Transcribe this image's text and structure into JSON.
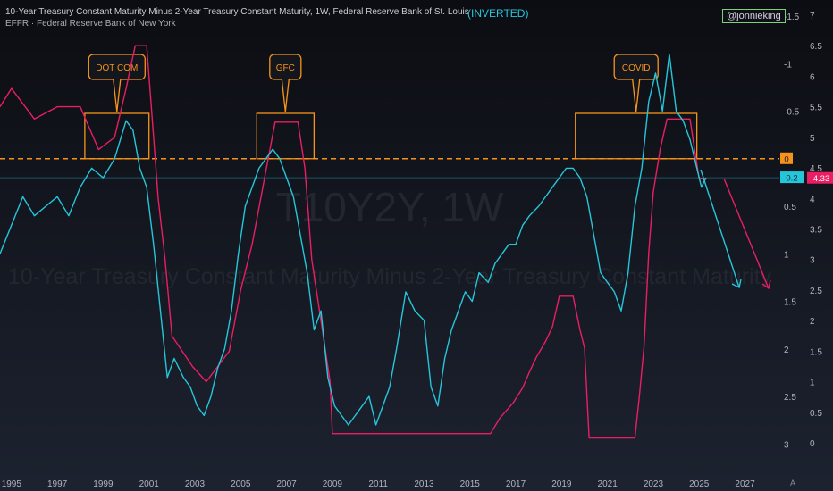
{
  "header": {
    "title": "10-Year Treasury Constant Maturity Minus 2-Year Treasury Constant Maturity, 1W, Federal Reserve Bank of St. Louis",
    "subtitle": "EFFR · Federal Reserve Bank of New York",
    "inverted_label": "(INVERTED)",
    "handle": "@jonnieking"
  },
  "watermark": {
    "symbol": "T10Y2Y, 1W",
    "description": "10-Year Treasury Constant Maturity Minus 2-Year Treasury Constant Maturity"
  },
  "colors": {
    "spread": "#26c6da",
    "effr": "#e91e63",
    "highlight": "#f7931a",
    "arrow_spread": "#26c6da",
    "arrow_effr": "#e91e63"
  },
  "chart_data": {
    "type": "line",
    "x_ticks": [
      "1995",
      "1997",
      "1999",
      "2001",
      "2003",
      "2005",
      "2007",
      "2009",
      "2011",
      "2013",
      "2015",
      "2017",
      "2019",
      "2021",
      "2023",
      "2025",
      "2027"
    ],
    "x_range": [
      1994.5,
      2028.5
    ],
    "left_axis_ticks": [
      "A",
      "1.5"
    ],
    "inner_axis": {
      "label": "T10Y2Y (inverted)",
      "ticks": [
        "-1.5",
        "-1",
        "-0.5",
        "0",
        "0.5",
        "1",
        "1.5",
        "2",
        "2.5",
        "3"
      ],
      "range": [
        -1.5,
        3.1
      ],
      "inverted": true
    },
    "right_axis": {
      "label": "EFFR",
      "ticks": [
        "7",
        "6.5",
        "6",
        "5.5",
        "5",
        "4.5",
        "4",
        "3.5",
        "3",
        "2.5",
        "2",
        "1.5",
        "1",
        "0.5",
        "0"
      ],
      "range": [
        0,
        7.15
      ]
    },
    "series": [
      {
        "name": "T10Y2Y",
        "axis": "inner",
        "x": [
          1994.5,
          1995.0,
          1995.5,
          1996.0,
          1996.5,
          1997.0,
          1997.5,
          1998.0,
          1998.5,
          1999.0,
          1999.5,
          2000.0,
          2000.3,
          2000.6,
          2000.9,
          2001.2,
          2001.5,
          2001.8,
          2002.1,
          2002.5,
          2002.8,
          2003.1,
          2003.4,
          2003.7,
          2004.0,
          2004.3,
          2004.6,
          2004.9,
          2005.2,
          2005.5,
          2005.8,
          2006.1,
          2006.4,
          2006.7,
          2007.0,
          2007.3,
          2007.6,
          2007.9,
          2008.2,
          2008.5,
          2008.8,
          2009.1,
          2009.4,
          2009.7,
          2010.0,
          2010.3,
          2010.6,
          2010.9,
          2011.2,
          2011.5,
          2011.8,
          2012.2,
          2012.6,
          2013.0,
          2013.3,
          2013.6,
          2013.9,
          2014.2,
          2014.5,
          2014.8,
          2015.1,
          2015.4,
          2015.8,
          2016.1,
          2016.4,
          2016.7,
          2017.0,
          2017.3,
          2017.6,
          2018.0,
          2018.3,
          2018.6,
          2018.9,
          2019.2,
          2019.5,
          2019.8,
          2020.1,
          2020.4,
          2020.7,
          2021.0,
          2021.3,
          2021.6,
          2021.9,
          2022.2,
          2022.5,
          2022.8,
          2023.1,
          2023.4,
          2023.7,
          2024.0,
          2024.3,
          2024.6,
          2024.9,
          2025.1,
          2025.3
        ],
        "values": [
          1.0,
          0.7,
          0.4,
          0.6,
          0.5,
          0.4,
          0.6,
          0.3,
          0.1,
          0.2,
          0.0,
          -0.4,
          -0.3,
          0.1,
          0.3,
          0.9,
          1.6,
          2.3,
          2.1,
          2.3,
          2.4,
          2.6,
          2.7,
          2.5,
          2.2,
          2.0,
          1.6,
          1.0,
          0.5,
          0.3,
          0.1,
          0.0,
          -0.1,
          0.0,
          0.2,
          0.4,
          0.8,
          1.2,
          1.8,
          1.6,
          2.3,
          2.6,
          2.7,
          2.8,
          2.7,
          2.6,
          2.5,
          2.8,
          2.6,
          2.4,
          2.0,
          1.4,
          1.6,
          1.7,
          2.4,
          2.6,
          2.1,
          1.8,
          1.6,
          1.4,
          1.5,
          1.2,
          1.3,
          1.1,
          1.0,
          0.9,
          0.9,
          0.7,
          0.6,
          0.5,
          0.4,
          0.3,
          0.2,
          0.1,
          0.1,
          0.2,
          0.4,
          0.8,
          1.2,
          1.3,
          1.4,
          1.6,
          1.2,
          0.5,
          0.1,
          -0.6,
          -0.9,
          -0.5,
          -1.1,
          -0.5,
          -0.4,
          -0.2,
          0.1,
          0.3,
          0.2
        ]
      },
      {
        "name": "EFFR",
        "axis": "right",
        "x": [
          1994.5,
          1995.0,
          1996.0,
          1997.0,
          1998.0,
          1998.8,
          1999.5,
          2000.0,
          2000.4,
          2000.9,
          2001.1,
          2001.4,
          2001.7,
          2002.0,
          2002.9,
          2003.5,
          2004.5,
          2005.0,
          2005.5,
          2006.0,
          2006.5,
          2007.5,
          2007.8,
          2008.1,
          2008.5,
          2008.9,
          2009.0,
          2015.9,
          2016.3,
          2016.9,
          2017.3,
          2017.6,
          2017.9,
          2018.3,
          2018.6,
          2018.9,
          2019.5,
          2019.8,
          2020.0,
          2020.2,
          2022.2,
          2022.4,
          2022.6,
          2022.8,
          2023.0,
          2023.3,
          2023.6,
          2024.6,
          2024.8,
          2025.0,
          2025.3
        ],
        "values": [
          5.5,
          5.8,
          5.3,
          5.5,
          5.5,
          4.8,
          5.0,
          5.8,
          6.5,
          6.5,
          5.5,
          4.0,
          3.0,
          1.75,
          1.25,
          1.0,
          1.5,
          2.5,
          3.25,
          4.25,
          5.25,
          5.25,
          4.5,
          3.0,
          2.0,
          1.0,
          0.15,
          0.15,
          0.4,
          0.66,
          0.9,
          1.16,
          1.4,
          1.66,
          1.9,
          2.4,
          2.4,
          1.85,
          1.55,
          0.08,
          0.08,
          0.8,
          1.6,
          3.1,
          4.1,
          4.8,
          5.3,
          5.3,
          4.8,
          4.33,
          4.33
        ]
      }
    ],
    "current_values": {
      "T10Y2Y": "0.2",
      "EFFR": "4.33",
      "zero_line": "0"
    },
    "annotations": [
      {
        "label": "DOT COM",
        "x_range": [
          1998.2,
          2001.0
        ]
      },
      {
        "label": "GFC",
        "x_range": [
          2005.7,
          2008.2
        ]
      },
      {
        "label": "COVID",
        "x_range": [
          2019.6,
          2024.9
        ]
      }
    ],
    "reference_line": {
      "value": 0,
      "axis": "inner",
      "style": "dashed"
    },
    "grid": false,
    "legend": "none"
  }
}
